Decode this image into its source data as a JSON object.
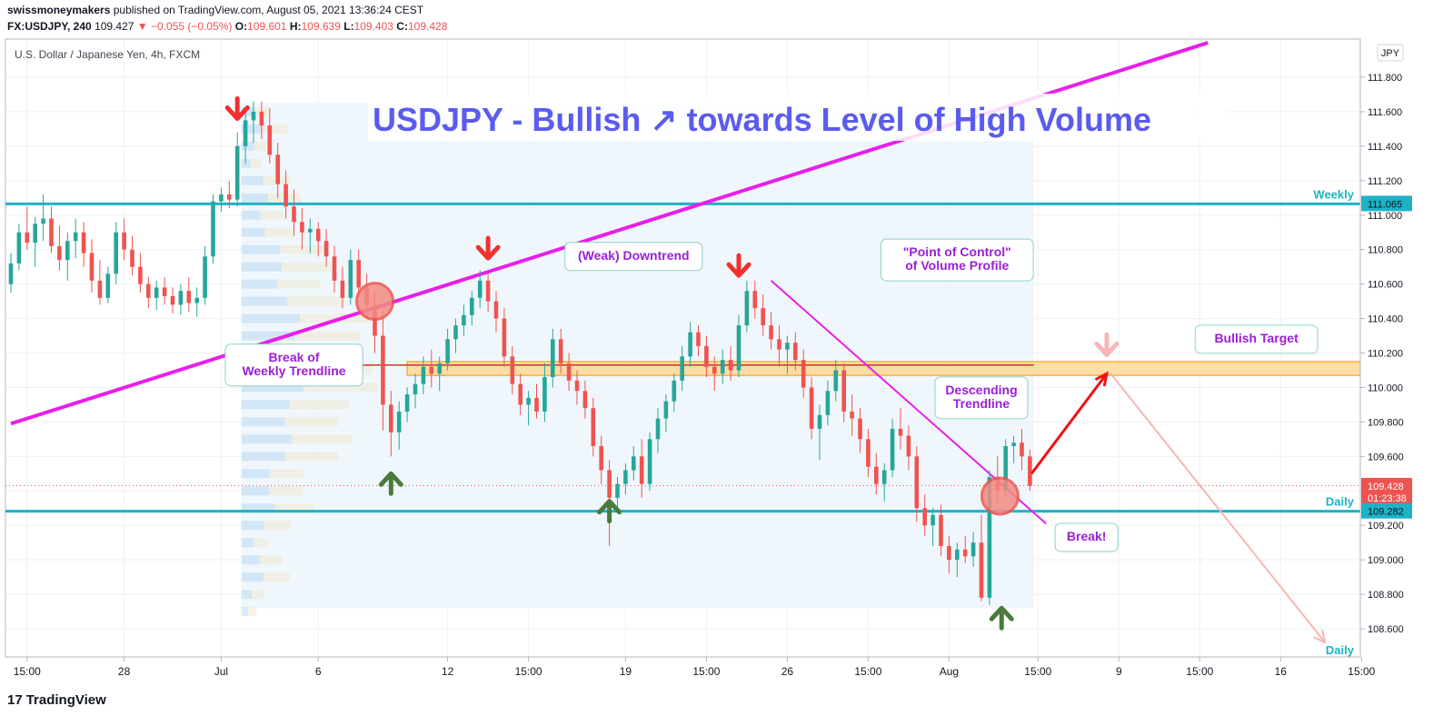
{
  "header": {
    "author": "swissmoneymakers",
    "published": "published on TradingView.com, August 05, 2021 13:36:24 CEST",
    "symbol": "FX:USDJPY, 240",
    "last": "109.427",
    "change": "▼ −0.055 (−0.05%)",
    "o_label": "O:",
    "o_value": "109.601",
    "h_label": "H:",
    "h_value": "109.639",
    "l_label": "L:",
    "l_value": "109.403",
    "c_label": "C:",
    "c_value": "109.428"
  },
  "brand": {
    "logo": "17",
    "name": "TradingView"
  },
  "colors": {
    "up": "#26a69a",
    "down": "#ef5350",
    "trend": "#e91ee9",
    "level": "#1db2c4",
    "title": "#5b5bf0",
    "annot": "#9b1fd6"
  },
  "chart_data": {
    "type": "candlestick",
    "instrument": "U.S. Dollar / Japanese Yen, 4h, FXCM",
    "title": "USDJPY - Bullish ↗ towards Level of High Volume",
    "currency": "JPY",
    "ylim": [
      108.4,
      112.0
    ],
    "y_ticks": [
      "111.800",
      "111.600",
      "111.400",
      "111.200",
      "111.000",
      "110.800",
      "110.600",
      "110.400",
      "110.200",
      "110.000",
      "109.800",
      "109.600",
      "109.400",
      "109.200",
      "109.000",
      "108.800",
      "108.600"
    ],
    "x_ticks": [
      {
        "label": "15:00",
        "i": 2
      },
      {
        "label": "28",
        "i": 14
      },
      {
        "label": "Jul",
        "i": 26
      },
      {
        "label": "6",
        "i": 38
      },
      {
        "label": "12",
        "i": 54
      },
      {
        "label": "15:00",
        "i": 64
      },
      {
        "label": "19",
        "i": 76
      },
      {
        "label": "15:00",
        "i": 86
      },
      {
        "label": "26",
        "i": 96
      },
      {
        "label": "15:00",
        "i": 106
      },
      {
        "label": "Aug",
        "i": 116
      },
      {
        "label": "15:00",
        "i": 127
      },
      {
        "label": "9",
        "i": 137
      },
      {
        "label": "15:00",
        "i": 147
      },
      {
        "label": "16",
        "i": 157
      },
      {
        "label": "15:00",
        "i": 167
      }
    ],
    "price_labels": [
      {
        "value": 111.065,
        "text": "111.065",
        "kind": "level"
      },
      {
        "value": 109.428,
        "text": "109.428",
        "sub": "01:23:38",
        "kind": "last"
      },
      {
        "value": 109.282,
        "text": "109.282",
        "kind": "level"
      }
    ],
    "levels": [
      {
        "value": 111.065,
        "label": "Weekly"
      },
      {
        "value": 109.282,
        "label": "Daily"
      }
    ],
    "lower_daily_label": "Daily",
    "trendlines": [
      {
        "name": "weekly-trendline",
        "from": {
          "i": 0,
          "y": 109.79
        },
        "to": {
          "i": 148,
          "y": 112.0
        }
      },
      {
        "name": "descending-trendline",
        "from": {
          "i": 94,
          "y": 110.62
        },
        "to": {
          "i": 128,
          "y": 109.21
        }
      }
    ],
    "zone": {
      "from_i": 49,
      "to_i": 168,
      "y1": 110.07,
      "y2": 110.15,
      "poc": 110.13
    },
    "annotations": [
      {
        "text": "(Weak) Downtrend",
        "i": 77,
        "y": 110.76
      },
      {
        "text": "\"Point of Control\"\nof Volume Profile",
        "i": 117,
        "y": 110.74
      },
      {
        "text": "Break of\nWeekly Trendline",
        "i": 35,
        "y": 110.13
      },
      {
        "text": "Descending\nTrendline",
        "i": 120,
        "y": 109.94
      },
      {
        "text": "Bullish Target",
        "i": 154,
        "y": 110.28
      },
      {
        "text": "Break!",
        "i": 133,
        "y": 109.13
      }
    ],
    "candles": [
      [
        110.6,
        110.78,
        110.55,
        110.72
      ],
      [
        110.72,
        110.95,
        110.68,
        110.9
      ],
      [
        110.9,
        111.05,
        110.8,
        110.84
      ],
      [
        110.84,
        110.99,
        110.7,
        110.95
      ],
      [
        110.95,
        111.12,
        110.85,
        110.98
      ],
      [
        110.98,
        111.05,
        110.78,
        110.82
      ],
      [
        110.82,
        110.94,
        110.68,
        110.74
      ],
      [
        110.74,
        110.9,
        110.62,
        110.85
      ],
      [
        110.85,
        110.98,
        110.75,
        110.9
      ],
      [
        110.9,
        110.96,
        110.7,
        110.78
      ],
      [
        110.78,
        110.86,
        110.55,
        110.62
      ],
      [
        110.62,
        110.74,
        110.48,
        110.52
      ],
      [
        110.52,
        110.7,
        110.49,
        110.66
      ],
      [
        110.66,
        110.96,
        110.6,
        110.9
      ],
      [
        110.9,
        110.98,
        110.74,
        110.8
      ],
      [
        110.8,
        110.88,
        110.65,
        110.7
      ],
      [
        110.7,
        110.78,
        110.55,
        110.6
      ],
      [
        110.6,
        110.64,
        110.46,
        110.52
      ],
      [
        110.52,
        110.62,
        110.45,
        110.58
      ],
      [
        110.58,
        110.64,
        110.48,
        110.53
      ],
      [
        110.53,
        110.58,
        110.43,
        110.48
      ],
      [
        110.48,
        110.6,
        110.42,
        110.56
      ],
      [
        110.56,
        110.64,
        110.44,
        110.49
      ],
      [
        110.49,
        110.58,
        110.41,
        110.52
      ],
      [
        110.52,
        110.82,
        110.48,
        110.76
      ],
      [
        110.76,
        111.12,
        110.72,
        111.08
      ],
      [
        111.08,
        111.16,
        111.02,
        111.12
      ],
      [
        111.12,
        111.2,
        111.04,
        111.09
      ],
      [
        111.09,
        111.48,
        111.05,
        111.4
      ],
      [
        111.4,
        111.6,
        111.3,
        111.55
      ],
      [
        111.55,
        111.66,
        111.42,
        111.6
      ],
      [
        111.6,
        111.66,
        111.44,
        111.52
      ],
      [
        111.52,
        111.62,
        111.3,
        111.35
      ],
      [
        111.35,
        111.42,
        111.1,
        111.18
      ],
      [
        111.18,
        111.26,
        110.98,
        111.05
      ],
      [
        111.05,
        111.15,
        110.88,
        110.96
      ],
      [
        110.96,
        111.04,
        110.8,
        110.9
      ],
      [
        110.9,
        110.98,
        110.78,
        110.92
      ],
      [
        110.92,
        110.96,
        110.76,
        110.85
      ],
      [
        110.85,
        110.92,
        110.7,
        110.76
      ],
      [
        110.76,
        110.82,
        110.55,
        110.62
      ],
      [
        110.62,
        110.7,
        110.46,
        110.52
      ],
      [
        110.52,
        110.8,
        110.48,
        110.74
      ],
      [
        110.74,
        110.8,
        110.52,
        110.58
      ],
      [
        110.58,
        110.66,
        110.4,
        110.48
      ],
      [
        110.48,
        110.56,
        110.2,
        110.3
      ],
      [
        110.3,
        110.44,
        109.75,
        109.9
      ],
      [
        109.9,
        109.98,
        109.6,
        109.74
      ],
      [
        109.74,
        109.92,
        109.64,
        109.86
      ],
      [
        109.86,
        110.0,
        109.8,
        109.96
      ],
      [
        109.96,
        110.08,
        109.88,
        110.02
      ],
      [
        110.02,
        110.18,
        109.96,
        110.12
      ],
      [
        110.12,
        110.22,
        110.0,
        110.08
      ],
      [
        110.08,
        110.18,
        109.98,
        110.14
      ],
      [
        110.14,
        110.34,
        110.1,
        110.28
      ],
      [
        110.28,
        110.4,
        110.2,
        110.36
      ],
      [
        110.36,
        110.48,
        110.3,
        110.42
      ],
      [
        110.42,
        110.56,
        110.36,
        110.52
      ],
      [
        110.52,
        110.68,
        110.46,
        110.62
      ],
      [
        110.62,
        110.66,
        110.44,
        110.5
      ],
      [
        110.5,
        110.56,
        110.32,
        110.4
      ],
      [
        110.4,
        110.46,
        110.12,
        110.18
      ],
      [
        110.18,
        110.24,
        109.96,
        110.02
      ],
      [
        110.02,
        110.08,
        109.84,
        109.9
      ],
      [
        109.9,
        109.98,
        109.78,
        109.94
      ],
      [
        109.94,
        110.02,
        109.82,
        109.86
      ],
      [
        109.86,
        110.14,
        109.8,
        110.06
      ],
      [
        110.06,
        110.34,
        110.0,
        110.28
      ],
      [
        110.28,
        110.34,
        110.08,
        110.14
      ],
      [
        110.14,
        110.2,
        109.98,
        110.04
      ],
      [
        110.04,
        110.1,
        109.9,
        109.98
      ],
      [
        109.98,
        110.04,
        109.82,
        109.88
      ],
      [
        109.88,
        109.94,
        109.6,
        109.66
      ],
      [
        109.66,
        109.72,
        109.44,
        109.52
      ],
      [
        109.52,
        109.58,
        109.08,
        109.36
      ],
      [
        109.36,
        109.48,
        109.3,
        109.44
      ],
      [
        109.44,
        109.56,
        109.38,
        109.52
      ],
      [
        109.52,
        109.66,
        109.46,
        109.6
      ],
      [
        109.6,
        109.7,
        109.36,
        109.44
      ],
      [
        109.44,
        109.74,
        109.4,
        109.7
      ],
      [
        109.7,
        109.88,
        109.62,
        109.82
      ],
      [
        109.82,
        109.96,
        109.74,
        109.92
      ],
      [
        109.92,
        110.08,
        109.86,
        110.04
      ],
      [
        110.04,
        110.24,
        109.98,
        110.18
      ],
      [
        110.18,
        110.38,
        110.12,
        110.32
      ],
      [
        110.32,
        110.36,
        110.18,
        110.24
      ],
      [
        110.24,
        110.3,
        110.06,
        110.12
      ],
      [
        110.12,
        110.18,
        109.98,
        110.08
      ],
      [
        110.08,
        110.22,
        110.02,
        110.16
      ],
      [
        110.16,
        110.24,
        110.04,
        110.1
      ],
      [
        110.1,
        110.42,
        110.06,
        110.36
      ],
      [
        110.36,
        110.62,
        110.32,
        110.56
      ],
      [
        110.56,
        110.62,
        110.4,
        110.46
      ],
      [
        110.46,
        110.54,
        110.3,
        110.36
      ],
      [
        110.36,
        110.44,
        110.22,
        110.28
      ],
      [
        110.28,
        110.36,
        110.12,
        110.22
      ],
      [
        110.22,
        110.3,
        110.08,
        110.26
      ],
      [
        110.26,
        110.32,
        110.1,
        110.16
      ],
      [
        110.16,
        110.22,
        109.94,
        110.0
      ],
      [
        110.0,
        110.06,
        109.7,
        109.76
      ],
      [
        109.76,
        109.9,
        109.58,
        109.84
      ],
      [
        109.84,
        110.04,
        109.78,
        109.98
      ],
      [
        109.98,
        110.16,
        109.92,
        110.1
      ],
      [
        110.1,
        110.14,
        109.8,
        109.86
      ],
      [
        109.86,
        109.96,
        109.72,
        109.82
      ],
      [
        109.82,
        109.88,
        109.62,
        109.7
      ],
      [
        109.7,
        109.76,
        109.48,
        109.54
      ],
      [
        109.54,
        109.62,
        109.38,
        109.44
      ],
      [
        109.44,
        109.56,
        109.34,
        109.52
      ],
      [
        109.52,
        109.82,
        109.48,
        109.76
      ],
      [
        109.76,
        109.88,
        109.64,
        109.72
      ],
      [
        109.72,
        109.78,
        109.52,
        109.6
      ],
      [
        109.6,
        109.66,
        109.22,
        109.3
      ],
      [
        109.3,
        109.38,
        109.14,
        109.2
      ],
      [
        109.2,
        109.3,
        109.08,
        109.26
      ],
      [
        109.26,
        109.32,
        109.02,
        109.08
      ],
      [
        109.08,
        109.14,
        108.92,
        109.0
      ],
      [
        109.0,
        109.1,
        108.9,
        109.06
      ],
      [
        109.06,
        109.14,
        108.98,
        109.02
      ],
      [
        109.02,
        109.16,
        108.96,
        109.1
      ],
      [
        109.1,
        109.26,
        108.76,
        108.78
      ],
      [
        108.78,
        109.52,
        108.74,
        109.48
      ],
      [
        109.48,
        109.6,
        109.32,
        109.4
      ],
      [
        109.4,
        109.7,
        109.36,
        109.66
      ],
      [
        109.66,
        109.72,
        109.56,
        109.68
      ],
      [
        109.68,
        109.76,
        109.52,
        109.6
      ],
      [
        109.6,
        109.64,
        109.4,
        109.43
      ]
    ]
  }
}
